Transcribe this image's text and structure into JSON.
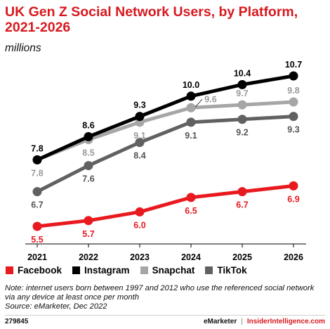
{
  "header": {
    "title": "UK Gen Z Social Network Users, by Platform, 2021-2026",
    "subtitle": "millions"
  },
  "chart_data": {
    "type": "line",
    "x": [
      "2021",
      "2022",
      "2023",
      "2024",
      "2025",
      "2026"
    ],
    "ylim": [
      5,
      11
    ],
    "grid": false,
    "legend_position": "bottom",
    "series": [
      {
        "name": "Facebook",
        "color": "#e8191f",
        "values": [
          5.5,
          5.7,
          6.0,
          6.5,
          6.7,
          6.9
        ],
        "labels": [
          "5.5",
          "5.7",
          "6.0",
          "6.5",
          "6.7",
          "6.9"
        ]
      },
      {
        "name": "Instagram",
        "color": "#000000",
        "values": [
          7.8,
          8.6,
          9.3,
          10.0,
          10.4,
          10.7
        ],
        "labels": [
          "7.8",
          "8.6",
          "9.3",
          "10.0",
          "10.4",
          "10.7"
        ]
      },
      {
        "name": "Snapchat",
        "color": "#a6a6a6",
        "values": [
          7.8,
          8.5,
          9.1,
          9.6,
          9.7,
          9.8
        ],
        "labels": [
          "7.8",
          "8.5",
          "9.1",
          "9.6",
          "9.7",
          "9.8"
        ]
      },
      {
        "name": "TikTok",
        "color": "#616161",
        "values": [
          6.7,
          7.6,
          8.4,
          9.1,
          9.2,
          9.3
        ],
        "labels": [
          "6.7",
          "7.6",
          "8.4",
          "9.1",
          "9.2",
          "9.3"
        ]
      }
    ]
  },
  "footer": {
    "note": "Note: internet users born between 1997 and 2012 who use the referenced social network via any device at least once per month",
    "source": "Source: eMarketer, Dec 2022",
    "chart_id": "279845",
    "brand_left": "eMarketer",
    "separator": "|",
    "brand_right": "InsiderIntelligence.com"
  }
}
